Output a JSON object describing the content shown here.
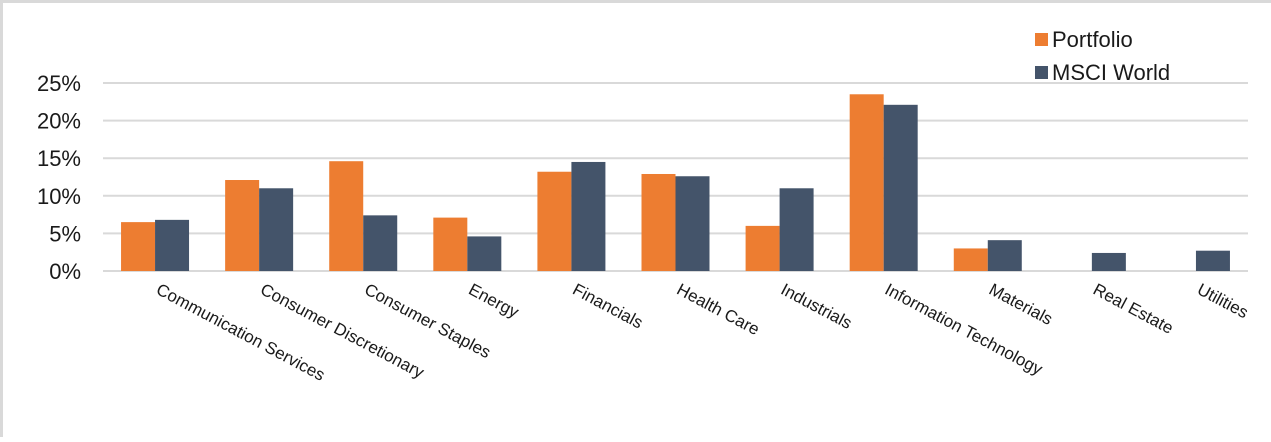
{
  "colors": {
    "portfolio": "#ed7d31",
    "msci_world": "#44546a",
    "gridline": "#d9d9d9",
    "frame": "#d9d9d9"
  },
  "chart_data": {
    "type": "bar",
    "categories": [
      "Communication Services",
      "Consumer Discretionary",
      "Consumer Staples",
      "Energy",
      "Financials",
      "Health Care",
      "Industrials",
      "Information Technology",
      "Materials",
      "Real Estate",
      "Utilities"
    ],
    "series": [
      {
        "name": "Portfolio",
        "color": "#ed7d31",
        "values": [
          6.5,
          12.1,
          14.6,
          7.1,
          13.2,
          12.9,
          6.0,
          23.5,
          3.0,
          0,
          0
        ]
      },
      {
        "name": "MSCI World",
        "color": "#44546a",
        "values": [
          6.8,
          11.0,
          7.4,
          4.6,
          14.5,
          12.6,
          11.0,
          22.1,
          4.1,
          2.4,
          2.7
        ]
      }
    ],
    "y_ticks": [
      "0%",
      "5%",
      "10%",
      "15%",
      "20%",
      "25%"
    ],
    "ylim": [
      0,
      25
    ],
    "title": "",
    "xlabel": "",
    "ylabel": "",
    "grid": true,
    "legend_position": "top-right"
  }
}
